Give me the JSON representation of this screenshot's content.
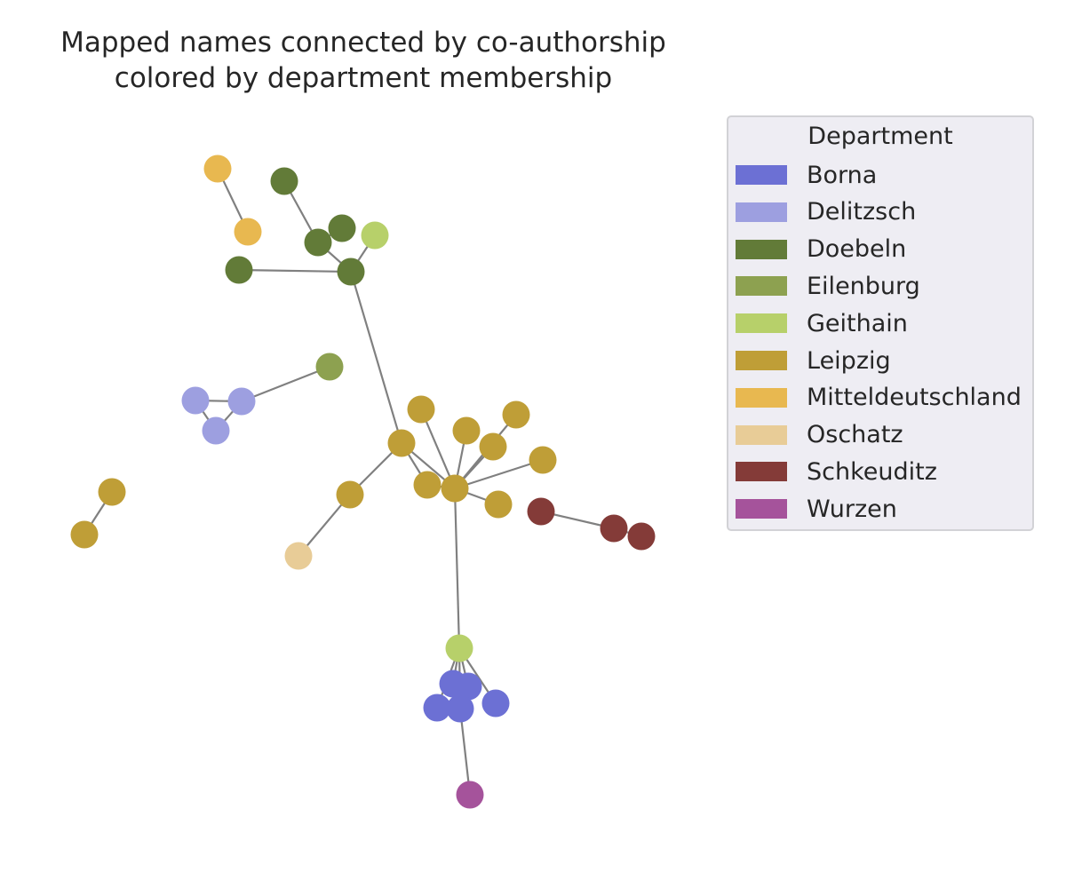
{
  "title": {
    "line1": "Mapped names connected by co-authorship",
    "line2": "colored by department membership"
  },
  "legend": {
    "title": "Department",
    "items": [
      {
        "label": "Borna",
        "color": "#6c70d4"
      },
      {
        "label": "Delitzsch",
        "color": "#9d9fe0"
      },
      {
        "label": "Doebeln",
        "color": "#627b38"
      },
      {
        "label": "Eilenburg",
        "color": "#8da150"
      },
      {
        "label": "Geithain",
        "color": "#b7d06a"
      },
      {
        "label": "Leipzig",
        "color": "#bf9e37"
      },
      {
        "label": "Mitteldeutschland",
        "color": "#e8b850"
      },
      {
        "label": "Oschatz",
        "color": "#e8cc97"
      },
      {
        "label": "Schkeuditz",
        "color": "#843b38"
      },
      {
        "label": "Wurzen",
        "color": "#a5539b"
      }
    ]
  },
  "diagram": {
    "edge_color": "#808080",
    "nodes": [
      {
        "id": "m1",
        "dept": "Mitteldeutschland"
      },
      {
        "id": "m2",
        "dept": "Mitteldeutschland"
      },
      {
        "id": "d1",
        "dept": "Doebeln"
      },
      {
        "id": "d2",
        "dept": "Doebeln"
      },
      {
        "id": "d3",
        "dept": "Doebeln"
      },
      {
        "id": "d4",
        "dept": "Doebeln"
      },
      {
        "id": "d5",
        "dept": "Doebeln"
      },
      {
        "id": "g1",
        "dept": "Geithain"
      },
      {
        "id": "e1",
        "dept": "Eilenburg"
      },
      {
        "id": "z1",
        "dept": "Delitzsch"
      },
      {
        "id": "z2",
        "dept": "Delitzsch"
      },
      {
        "id": "z3",
        "dept": "Delitzsch"
      },
      {
        "id": "l1",
        "dept": "Leipzig"
      },
      {
        "id": "l2",
        "dept": "Leipzig"
      },
      {
        "id": "l3",
        "dept": "Leipzig"
      },
      {
        "id": "l4",
        "dept": "Leipzig"
      },
      {
        "id": "l5",
        "dept": "Leipzig"
      },
      {
        "id": "l6",
        "dept": "Leipzig"
      },
      {
        "id": "l7",
        "dept": "Leipzig"
      },
      {
        "id": "l8",
        "dept": "Leipzig"
      },
      {
        "id": "l9",
        "dept": "Leipzig"
      },
      {
        "id": "l10",
        "dept": "Leipzig"
      },
      {
        "id": "l11",
        "dept": "Leipzig"
      },
      {
        "id": "l12",
        "dept": "Leipzig"
      },
      {
        "id": "o1",
        "dept": "Oschatz"
      },
      {
        "id": "s1",
        "dept": "Schkeuditz"
      },
      {
        "id": "s2",
        "dept": "Schkeuditz"
      },
      {
        "id": "s3",
        "dept": "Schkeuditz"
      },
      {
        "id": "g2",
        "dept": "Geithain"
      },
      {
        "id": "b1",
        "dept": "Borna"
      },
      {
        "id": "b2",
        "dept": "Borna"
      },
      {
        "id": "b3",
        "dept": "Borna"
      },
      {
        "id": "b4",
        "dept": "Borna"
      },
      {
        "id": "b5",
        "dept": "Borna"
      },
      {
        "id": "w1",
        "dept": "Wurzen"
      }
    ],
    "edges": [
      [
        "m1",
        "m2"
      ],
      [
        "d1",
        "d2"
      ],
      [
        "d4",
        "d2"
      ],
      [
        "d2",
        "d5"
      ],
      [
        "d3",
        "d5"
      ],
      [
        "g1",
        "d5"
      ],
      [
        "d5",
        "l2"
      ],
      [
        "z1",
        "z2"
      ],
      [
        "z1",
        "z3"
      ],
      [
        "z3",
        "z2"
      ],
      [
        "z2",
        "e1"
      ],
      [
        "l2",
        "l3"
      ],
      [
        "l2",
        "l4"
      ],
      [
        "l2",
        "l11"
      ],
      [
        "l11",
        "o1"
      ],
      [
        "l4",
        "l1"
      ],
      [
        "l4",
        "l3"
      ],
      [
        "l4",
        "l5"
      ],
      [
        "l4",
        "l6"
      ],
      [
        "l4",
        "l7"
      ],
      [
        "l4",
        "l8"
      ],
      [
        "l4",
        "l9"
      ],
      [
        "l4",
        "g2"
      ],
      [
        "s1",
        "s2"
      ],
      [
        "s2",
        "s3"
      ],
      [
        "l10",
        "l12"
      ],
      [
        "g2",
        "b1"
      ],
      [
        "g2",
        "b2"
      ],
      [
        "g2",
        "b3"
      ],
      [
        "g2",
        "b4"
      ],
      [
        "g2",
        "b5"
      ],
      [
        "b1",
        "b2"
      ],
      [
        "b4",
        "w1"
      ]
    ]
  }
}
